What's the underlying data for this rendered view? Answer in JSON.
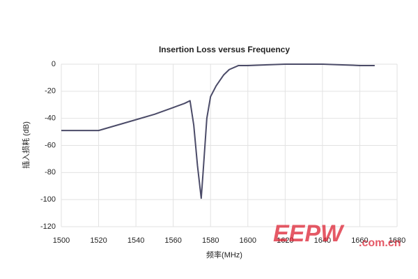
{
  "chart_data": {
    "type": "line",
    "title": "Insertion Loss versus Frequency",
    "x_label": "频率(MHz)",
    "y_label": "插入损耗 (dB)",
    "x": [
      1500,
      1520,
      1530,
      1540,
      1550,
      1560,
      1566,
      1569,
      1571,
      1573,
      1575,
      1576,
      1578,
      1580,
      1583,
      1587,
      1590,
      1595,
      1600,
      1620,
      1640,
      1660,
      1668
    ],
    "values": [
      -49,
      -49,
      -45,
      -41,
      -37,
      -32,
      -29,
      -27,
      -45,
      -75,
      -99,
      -80,
      -40,
      -24,
      -16,
      -8,
      -4,
      -1,
      -1,
      0,
      0,
      -1,
      -1
    ],
    "color": "#4b4b68",
    "xlim": [
      1500,
      1680
    ],
    "xticks": [
      1500,
      1520,
      1540,
      1560,
      1580,
      1600,
      1620,
      1640,
      1660,
      1680
    ],
    "ylim": [
      -120,
      0
    ],
    "yticks": [
      -120,
      -100,
      -80,
      -60,
      -40,
      -20,
      0
    ],
    "grid": true
  },
  "watermark": {
    "logo": "EEPW",
    "url": ".com.cn"
  }
}
